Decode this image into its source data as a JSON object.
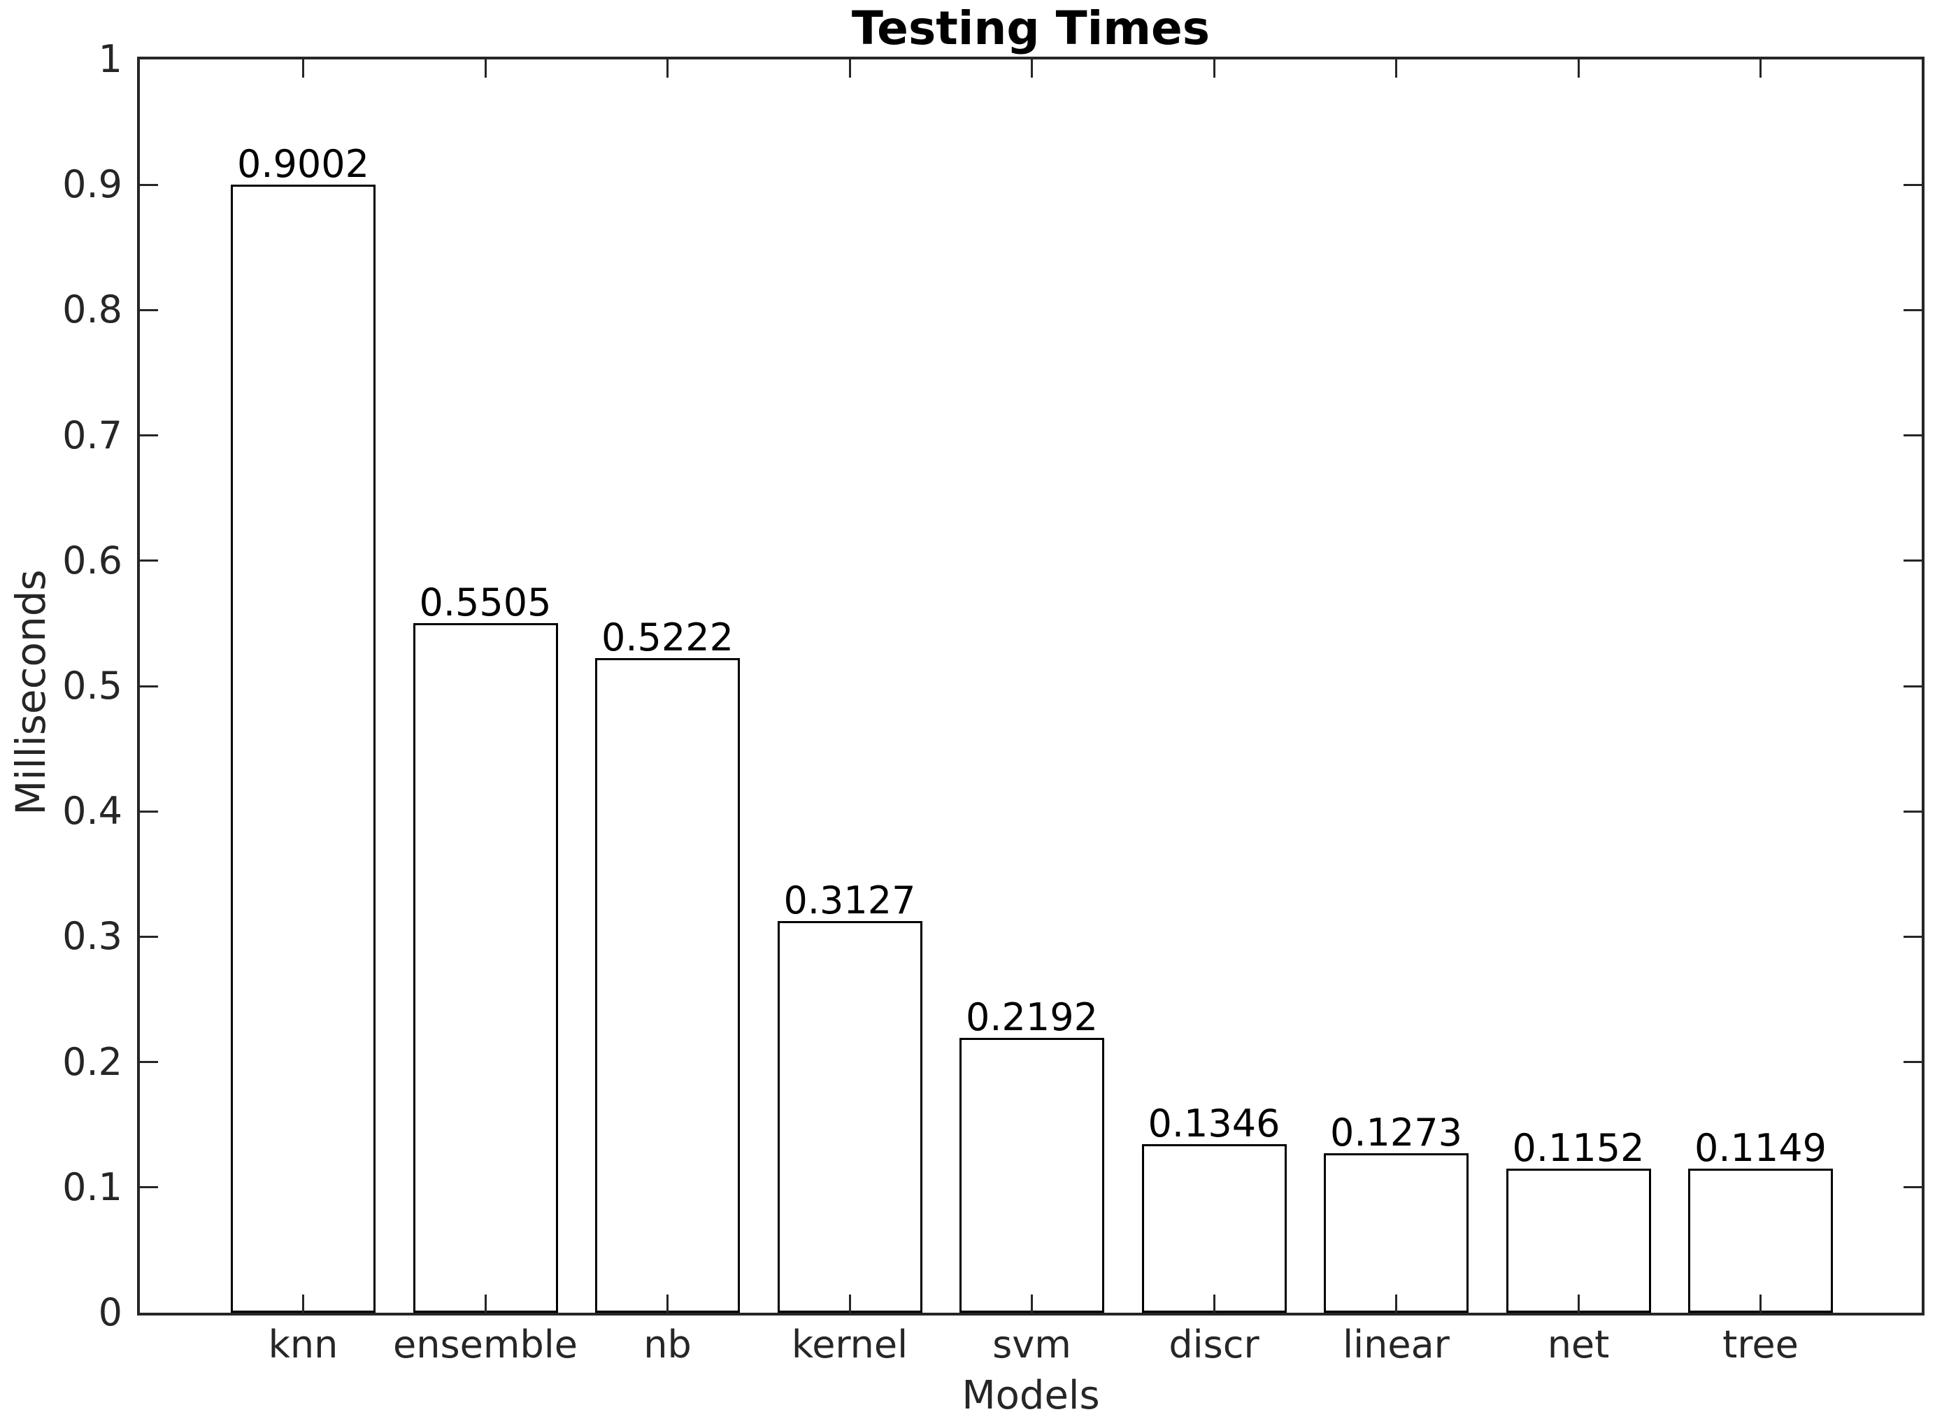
{
  "chart_data": {
    "type": "bar",
    "title": "Testing Times",
    "xlabel": "Models",
    "ylabel": "Milliseconds",
    "categories": [
      "knn",
      "ensemble",
      "nb",
      "kernel",
      "svm",
      "discr",
      "linear",
      "net",
      "tree"
    ],
    "values": [
      0.9002,
      0.5505,
      0.5222,
      0.3127,
      0.2192,
      0.1346,
      0.1273,
      0.1152,
      0.1149
    ],
    "value_labels": [
      "0.9002",
      "0.5505",
      "0.5222",
      "0.3127",
      "0.2192",
      "0.1346",
      "0.1273",
      "0.1152",
      "0.1149"
    ],
    "ylim": [
      0,
      1
    ],
    "ytick_labels": [
      "0",
      "0.1",
      "0.2",
      "0.3",
      "0.4",
      "0.5",
      "0.6",
      "0.7",
      "0.8",
      "0.9",
      "1"
    ],
    "ytick_values": [
      0,
      0.1,
      0.2,
      0.3,
      0.4,
      0.5,
      0.6,
      0.7,
      0.8,
      0.9,
      1
    ],
    "grid": false,
    "legend": "none",
    "bar_fill_color": "#ffffff",
    "bar_edge_color": "#000000",
    "axis_color": "#262626",
    "text_color": "#262626",
    "title_color": "#000000"
  }
}
